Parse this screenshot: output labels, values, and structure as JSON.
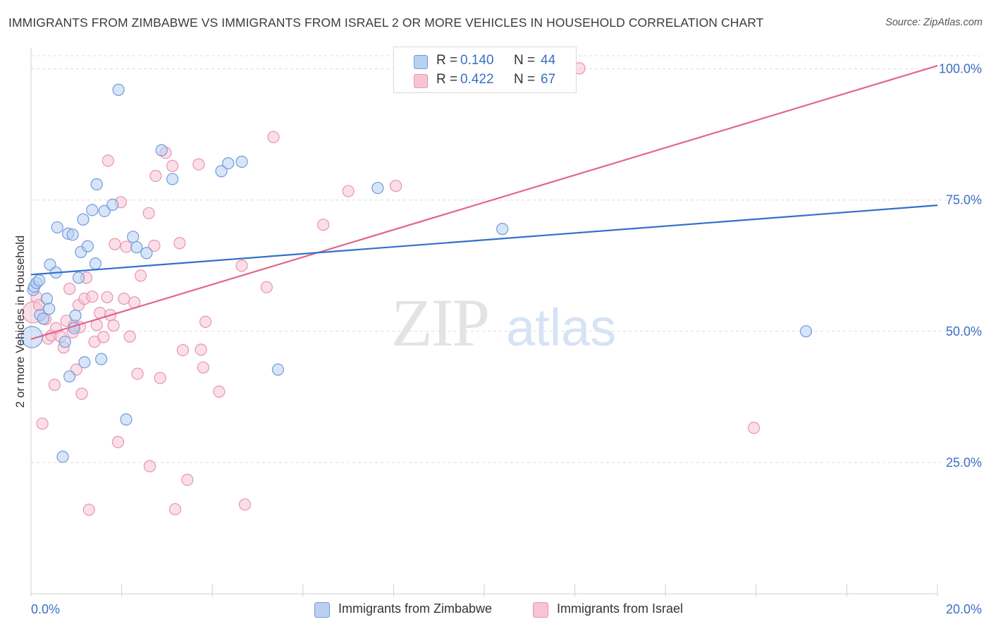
{
  "header": {
    "title": "IMMIGRANTS FROM ZIMBABWE VS IMMIGRANTS FROM ISRAEL 2 OR MORE VEHICLES IN HOUSEHOLD CORRELATION CHART",
    "source": "Source: ZipAtlas.com"
  },
  "watermark": {
    "zip": "ZIP",
    "atlas": "atlas"
  },
  "legend": {
    "r_label": "R =",
    "n_label": "N =",
    "series": [
      {
        "name": "Immigrants from Zimbabwe",
        "r": "0.140",
        "n": "44"
      },
      {
        "name": "Immigrants from Israel",
        "r": "0.422",
        "n": "67"
      }
    ]
  },
  "colors": {
    "zimbabwe_fill": "#b8d0f2",
    "zimbabwe_stroke": "#6f9bdc",
    "zimbabwe_line": "#3370cc",
    "israel_fill": "#f8c4d4",
    "israel_stroke": "#ea92b0",
    "israel_line": "#e0658e",
    "tick_label": "#3a6fc4",
    "grid": "#dcdcdc"
  },
  "chart_data": {
    "type": "scatter",
    "title": "IMMIGRANTS FROM ZIMBABWE VS IMMIGRANTS FROM ISRAEL 2 OR MORE VEHICLES IN HOUSEHOLD CORRELATION CHART",
    "xlabel": "",
    "ylabel": "2 or more Vehicles in Household",
    "xlim": [
      0,
      20
    ],
    "ylim": [
      0,
      102.5
    ],
    "x_tick_labels": [
      "0.0%",
      "20.0%"
    ],
    "y_ticks": [
      25,
      50,
      75,
      100
    ],
    "y_tick_labels": [
      "25.0%",
      "50.0%",
      "75.0%",
      "100.0%"
    ],
    "series": [
      {
        "name": "Immigrants from Zimbabwe",
        "r": 0.14,
        "n": 44,
        "trend": {
          "x": [
            0,
            20
          ],
          "y": [
            60.8,
            74.0
          ]
        },
        "points": [
          {
            "x": 0.02,
            "y": 48.9,
            "big": true
          },
          {
            "x": 0.05,
            "y": 57.9
          },
          {
            "x": 0.07,
            "y": 58.5
          },
          {
            "x": 0.12,
            "y": 59.2
          },
          {
            "x": 0.18,
            "y": 59.7
          },
          {
            "x": 0.2,
            "y": 53.1
          },
          {
            "x": 0.27,
            "y": 52.4
          },
          {
            "x": 0.35,
            "y": 56.2
          },
          {
            "x": 0.42,
            "y": 62.7
          },
          {
            "x": 0.55,
            "y": 61.2
          },
          {
            "x": 0.58,
            "y": 69.8
          },
          {
            "x": 0.7,
            "y": 26.1
          },
          {
            "x": 0.75,
            "y": 48.0
          },
          {
            "x": 0.82,
            "y": 68.6
          },
          {
            "x": 0.85,
            "y": 41.4
          },
          {
            "x": 0.92,
            "y": 68.4
          },
          {
            "x": 0.95,
            "y": 50.6
          },
          {
            "x": 0.98,
            "y": 53.0
          },
          {
            "x": 1.05,
            "y": 60.2
          },
          {
            "x": 1.1,
            "y": 65.1
          },
          {
            "x": 1.15,
            "y": 71.3
          },
          {
            "x": 1.18,
            "y": 44.1
          },
          {
            "x": 1.25,
            "y": 66.2
          },
          {
            "x": 1.35,
            "y": 73.1
          },
          {
            "x": 1.42,
            "y": 62.9
          },
          {
            "x": 1.45,
            "y": 78.0
          },
          {
            "x": 1.55,
            "y": 44.7
          },
          {
            "x": 1.62,
            "y": 72.9
          },
          {
            "x": 1.8,
            "y": 74.1
          },
          {
            "x": 1.93,
            "y": 96.0
          },
          {
            "x": 2.1,
            "y": 33.2
          },
          {
            "x": 2.25,
            "y": 68.0
          },
          {
            "x": 2.33,
            "y": 66.0
          },
          {
            "x": 2.55,
            "y": 64.9
          },
          {
            "x": 2.88,
            "y": 84.5
          },
          {
            "x": 3.12,
            "y": 79.0
          },
          {
            "x": 4.2,
            "y": 80.5
          },
          {
            "x": 4.35,
            "y": 82.0
          },
          {
            "x": 4.65,
            "y": 82.3
          },
          {
            "x": 5.45,
            "y": 42.7
          },
          {
            "x": 7.65,
            "y": 77.3
          },
          {
            "x": 10.4,
            "y": 69.5
          },
          {
            "x": 17.1,
            "y": 50.0
          },
          {
            "x": 0.4,
            "y": 54.3
          }
        ]
      },
      {
        "name": "Immigrants from Israel",
        "r": 0.422,
        "n": 67,
        "trend": {
          "x": [
            0,
            20
          ],
          "y": [
            48.5,
            100.6
          ]
        },
        "points": [
          {
            "x": 0.05,
            "y": 53.6,
            "big": true
          },
          {
            "x": 0.12,
            "y": 56.5
          },
          {
            "x": 0.18,
            "y": 55.0
          },
          {
            "x": 0.25,
            "y": 32.4
          },
          {
            "x": 0.32,
            "y": 52.3
          },
          {
            "x": 0.38,
            "y": 48.6
          },
          {
            "x": 0.45,
            "y": 49.2
          },
          {
            "x": 0.52,
            "y": 39.8
          },
          {
            "x": 0.55,
            "y": 50.6
          },
          {
            "x": 0.65,
            "y": 49.0
          },
          {
            "x": 0.72,
            "y": 46.9
          },
          {
            "x": 0.78,
            "y": 52.0
          },
          {
            "x": 0.85,
            "y": 58.1
          },
          {
            "x": 0.92,
            "y": 49.8
          },
          {
            "x": 0.95,
            "y": 51.1
          },
          {
            "x": 1.0,
            "y": 42.7
          },
          {
            "x": 1.05,
            "y": 55.0
          },
          {
            "x": 1.08,
            "y": 50.8
          },
          {
            "x": 1.12,
            "y": 38.1
          },
          {
            "x": 1.18,
            "y": 56.2
          },
          {
            "x": 1.22,
            "y": 60.2
          },
          {
            "x": 1.28,
            "y": 16.0
          },
          {
            "x": 1.35,
            "y": 56.6
          },
          {
            "x": 1.4,
            "y": 48.0
          },
          {
            "x": 1.45,
            "y": 51.2
          },
          {
            "x": 1.52,
            "y": 53.5
          },
          {
            "x": 1.6,
            "y": 48.9
          },
          {
            "x": 1.68,
            "y": 56.5
          },
          {
            "x": 1.7,
            "y": 82.5
          },
          {
            "x": 1.75,
            "y": 53.1
          },
          {
            "x": 1.82,
            "y": 51.1
          },
          {
            "x": 1.85,
            "y": 66.6
          },
          {
            "x": 1.92,
            "y": 28.9
          },
          {
            "x": 1.98,
            "y": 74.6
          },
          {
            "x": 2.05,
            "y": 56.2
          },
          {
            "x": 2.1,
            "y": 66.1
          },
          {
            "x": 2.18,
            "y": 49.0
          },
          {
            "x": 2.28,
            "y": 55.5
          },
          {
            "x": 2.35,
            "y": 41.9
          },
          {
            "x": 2.42,
            "y": 60.6
          },
          {
            "x": 2.6,
            "y": 72.5
          },
          {
            "x": 2.62,
            "y": 24.3
          },
          {
            "x": 2.72,
            "y": 66.3
          },
          {
            "x": 2.75,
            "y": 79.6
          },
          {
            "x": 2.85,
            "y": 41.1
          },
          {
            "x": 2.97,
            "y": 84.0
          },
          {
            "x": 3.12,
            "y": 81.5
          },
          {
            "x": 3.18,
            "y": 16.1
          },
          {
            "x": 3.28,
            "y": 66.8
          },
          {
            "x": 3.35,
            "y": 46.4
          },
          {
            "x": 3.45,
            "y": 21.7
          },
          {
            "x": 3.7,
            "y": 81.8
          },
          {
            "x": 3.75,
            "y": 46.5
          },
          {
            "x": 3.8,
            "y": 43.1
          },
          {
            "x": 3.85,
            "y": 51.8
          },
          {
            "x": 4.15,
            "y": 38.5
          },
          {
            "x": 4.65,
            "y": 62.5
          },
          {
            "x": 4.72,
            "y": 17.0
          },
          {
            "x": 5.2,
            "y": 58.4
          },
          {
            "x": 5.35,
            "y": 87.0
          },
          {
            "x": 6.45,
            "y": 70.3
          },
          {
            "x": 7.0,
            "y": 76.7
          },
          {
            "x": 8.05,
            "y": 77.7
          },
          {
            "x": 10.45,
            "y": 100.1
          },
          {
            "x": 11.9,
            "y": 100.3
          },
          {
            "x": 12.1,
            "y": 100.1
          },
          {
            "x": 15.95,
            "y": 31.6
          }
        ]
      }
    ]
  }
}
